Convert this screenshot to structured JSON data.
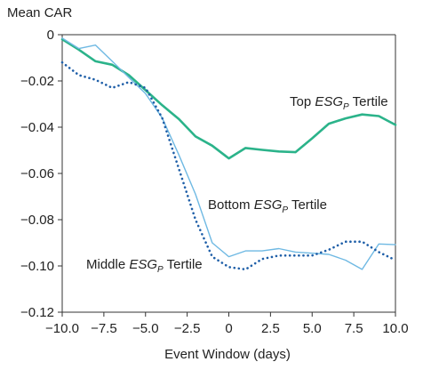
{
  "chart_data": {
    "type": "line",
    "title": "",
    "ylabel": "Mean CAR",
    "xlabel": "Event Window (days)",
    "xlim": [
      -10,
      10
    ],
    "ylim": [
      -0.12,
      0
    ],
    "grid": false,
    "legend": "none (inline annotations)",
    "x_ticks": [
      -10,
      -7.5,
      -5,
      -2.5,
      0,
      2.5,
      5,
      7.5,
      10
    ],
    "x_tick_labels": [
      "−10.0",
      "−7.5",
      "−5.0",
      "−2.5",
      "0",
      "2.5",
      "5.0",
      "7.5",
      "10.0"
    ],
    "y_ticks": [
      0,
      -0.02,
      -0.04,
      -0.06,
      -0.08,
      -0.1,
      -0.12
    ],
    "y_tick_labels": [
      "0",
      "−0.02",
      "−0.04",
      "−0.06",
      "−0.08",
      "−0.10",
      "−0.12"
    ],
    "colors": {
      "top": "#2bb38a",
      "bottom": "#6fb9e3",
      "middle": "#1f5fa8",
      "axis": "#333333"
    },
    "series": [
      {
        "key": "top",
        "style": "solid-thick",
        "x": [
          -10,
          -9,
          -8,
          -7,
          -6,
          -5,
          -4,
          -3,
          -2,
          -1,
          0,
          1,
          2,
          3,
          4,
          5,
          6,
          7,
          8,
          9,
          10
        ],
        "y": [
          -0.002,
          -0.0065,
          -0.0115,
          -0.013,
          -0.0175,
          -0.024,
          -0.0305,
          -0.0365,
          -0.044,
          -0.048,
          -0.0535,
          -0.049,
          -0.0498,
          -0.0505,
          -0.0508,
          -0.0448,
          -0.0385,
          -0.0362,
          -0.0345,
          -0.0352,
          -0.039
        ]
      },
      {
        "key": "bottom",
        "style": "solid-thin",
        "x": [
          -10,
          -9,
          -8,
          -7,
          -6,
          -5,
          -4,
          -3,
          -2,
          -1,
          0,
          1,
          2,
          3,
          4,
          5,
          6,
          7,
          8,
          9,
          10
        ],
        "y": [
          -0.0015,
          -0.006,
          -0.0045,
          -0.0115,
          -0.0185,
          -0.0255,
          -0.036,
          -0.052,
          -0.069,
          -0.09,
          -0.096,
          -0.0935,
          -0.0935,
          -0.0925,
          -0.094,
          -0.0945,
          -0.095,
          -0.0975,
          -0.1015,
          -0.0905,
          -0.0908
        ]
      },
      {
        "key": "middle",
        "style": "dotted",
        "x": [
          -10,
          -9,
          -8,
          -7,
          -6,
          -5,
          -4,
          -3,
          -2,
          -1,
          0,
          1,
          2,
          3,
          4,
          5,
          6,
          7,
          8,
          9,
          10
        ],
        "y": [
          -0.012,
          -0.0175,
          -0.0195,
          -0.023,
          -0.0205,
          -0.023,
          -0.036,
          -0.058,
          -0.08,
          -0.096,
          -0.1005,
          -0.1015,
          -0.097,
          -0.0955,
          -0.0955,
          -0.0955,
          -0.093,
          -0.0895,
          -0.0895,
          -0.094,
          -0.0975
        ]
      }
    ],
    "annotations": {
      "top": {
        "main": "Top ",
        "italic": "ESG",
        "sub": "P",
        "rest": " Tertile"
      },
      "bottom": {
        "main": "Bottom ",
        "italic": "ESG",
        "sub": "P",
        "rest": " Tertile"
      },
      "middle": {
        "main": "Middle ",
        "italic": "ESG",
        "sub": "P",
        "rest": " Tertile"
      }
    }
  }
}
